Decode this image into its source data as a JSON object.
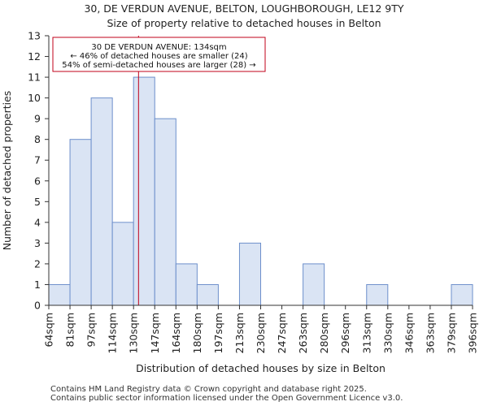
{
  "title_line1": "30, DE VERDUN AVENUE, BELTON, LOUGHBOROUGH, LE12 9TY",
  "title_line2": "Size of property relative to detached houses in Belton",
  "footer_line1": "Contains HM Land Registry data © Crown copyright and database right 2025.",
  "footer_line2": "Contains public sector information licensed under the Open Government Licence v3.0.",
  "colors": {
    "bar_fill": "#dae4f4",
    "bar_stroke": "#6d8fcb",
    "marker": "#c0001a",
    "annotation_border": "#c0001a"
  },
  "chart_data": {
    "type": "bar",
    "title": "Size of property relative to detached houses in Belton",
    "xlabel": "Distribution of detached houses by size in Belton",
    "ylabel": "Number of detached properties",
    "bin_edges": [
      "64sqm",
      "81sqm",
      "97sqm",
      "114sqm",
      "130sqm",
      "147sqm",
      "164sqm",
      "180sqm",
      "197sqm",
      "213sqm",
      "230sqm",
      "247sqm",
      "263sqm",
      "280sqm",
      "296sqm",
      "313sqm",
      "330sqm",
      "346sqm",
      "363sqm",
      "379sqm",
      "396sqm"
    ],
    "values": [
      1,
      8,
      10,
      4,
      11,
      9,
      2,
      1,
      0,
      3,
      0,
      0,
      2,
      0,
      0,
      1,
      0,
      0,
      0,
      1
    ],
    "ylim": [
      0,
      13
    ],
    "yticks": [
      0,
      1,
      2,
      3,
      4,
      5,
      6,
      7,
      8,
      9,
      10,
      11,
      12,
      13
    ],
    "grid": false,
    "marker": {
      "value_sqm": 134,
      "bin_index": 4,
      "bin_lo": 130,
      "bin_hi": 147
    },
    "annotation": {
      "line1": "30 DE VERDUN AVENUE: 134sqm",
      "line2": "← 46% of detached houses are smaller (24)",
      "line3": "54% of semi-detached houses are larger (28) →"
    }
  }
}
